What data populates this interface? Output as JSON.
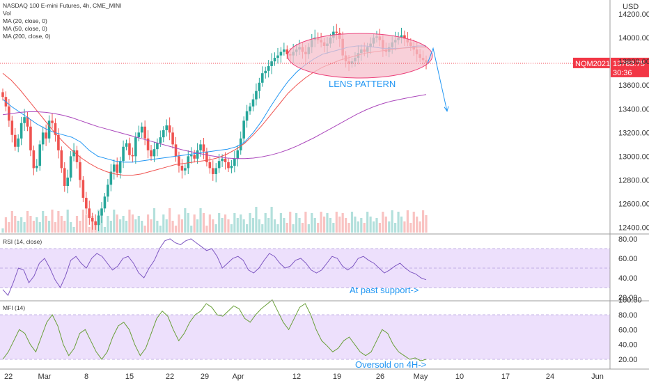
{
  "header": {
    "symbol_line": "NASDAQ 100 E-mini Futures, 4h, CME_MINI",
    "vol_label": "Vol",
    "ma_labels": [
      "MA (20, close, 0)",
      "MA (50, close, 0)",
      "MA (200, close, 0)"
    ]
  },
  "price_axis": {
    "currency": "USD",
    "ticks": [
      12400,
      12600,
      12800,
      13000,
      13200,
      13400,
      13600,
      13800,
      14000,
      14200
    ],
    "tick_labels": [
      "12400.00",
      "12600.00",
      "12800.00",
      "13000.00",
      "13200.00",
      "13400.00",
      "13600.00",
      "13800.00",
      "14000.00",
      "14200.00"
    ],
    "current_symbol": "NQM2021",
    "current_price": "13783.75",
    "countdown": "30:36",
    "badge_color": "#f23645"
  },
  "rsi": {
    "label": "RSI (14, close)",
    "tick_labels": [
      "20.00",
      "40.00",
      "60.00",
      "80.00"
    ],
    "band": [
      30,
      70
    ]
  },
  "mfi": {
    "label": "MFI (14)",
    "tick_labels": [
      "20.00",
      "40.00",
      "60.00",
      "80.00",
      "100.00"
    ],
    "band": [
      20,
      80
    ]
  },
  "time_axis": {
    "labels": [
      "22",
      "Mar",
      "8",
      "15",
      "22",
      "29",
      "Apr",
      "12",
      "19",
      "26",
      "May",
      "10",
      "17",
      "24",
      "Jun"
    ]
  },
  "annotations": {
    "lens": "LENS PATTERN",
    "rsi_note": "At past support->",
    "mfi_note": "Oversold on 4H->"
  },
  "colors": {
    "up": "#26a69a",
    "down": "#ef5350",
    "ma20": "#2196f3",
    "ma50": "#ef5350",
    "ma200": "#ab47bc",
    "rsi_line": "#7e57c2",
    "mfi_line": "#689f38",
    "band_fill": "#ede0fc",
    "annotation": "#2196f3",
    "ellipse_fill": "#f6c0cc",
    "ellipse_stroke": "#ec407a"
  },
  "chart_data": {
    "type": "candlestick",
    "title": "NASDAQ 100 E-mini Futures, 4h, CME_MINI",
    "ylabel": "USD",
    "ylim": [
      12300,
      14300
    ],
    "x_labels": [
      "22",
      "Mar",
      "8",
      "15",
      "22",
      "29",
      "Apr",
      "12",
      "19",
      "26",
      "May",
      "10",
      "17",
      "24",
      "Jun"
    ],
    "close_series": [
      13500,
      13420,
      13300,
      13180,
      13080,
      13150,
      13280,
      13330,
      13250,
      13050,
      12900,
      12920,
      13100,
      13200,
      13150,
      13300,
      13280,
      13180,
      13050,
      12900,
      12750,
      12820,
      13000,
      13050,
      12950,
      12800,
      12650,
      12560,
      12480,
      12450,
      12420,
      12500,
      12560,
      12660,
      12760,
      12870,
      12930,
      12860,
      12960,
      13080,
      13110,
      13010,
      13000,
      13160,
      13200,
      13250,
      13150,
      13050,
      13000,
      13060,
      13110,
      13160,
      13220,
      13260,
      13200,
      13100,
      13000,
      12920,
      12880,
      12900,
      13000,
      13010,
      12980,
      13050,
      13100,
      13040,
      12950,
      12900,
      12850,
      12900,
      12960,
      12980,
      12950,
      12900,
      12920,
      12980,
      13050,
      13150,
      13300,
      13380,
      13420,
      13480,
      13550,
      13620,
      13700,
      13720,
      13760,
      13800,
      13830,
      13850,
      13880,
      13900,
      13860,
      13850,
      13880,
      13900,
      13920,
      13880,
      13860,
      13920,
      13980,
      14000,
      13980,
      13960,
      13930,
      13950,
      14000,
      14050,
      14040,
      13990,
      13850,
      13800,
      13780,
      13800,
      13830,
      13870,
      13900,
      13880,
      13920,
      13950,
      14000,
      14010,
      13980,
      13900,
      13880,
      13920,
      13960,
      13980,
      14000,
      14020,
      13990,
      13960,
      13930,
      13900,
      13860,
      13830,
      13810,
      13790
    ],
    "series": [
      {
        "name": "MA (20, close, 0)",
        "values": [
          13480,
          13420,
          13370,
          13320,
          13270,
          13230,
          13200,
          13180,
          13160,
          13120,
          13050,
          13000,
          12980,
          12960,
          12950,
          12950,
          12960,
          12970,
          12980,
          12990,
          13000,
          13010,
          13020,
          13030,
          13040,
          13050,
          13060,
          13080,
          13120,
          13200,
          13300,
          13420,
          13530,
          13630,
          13710,
          13770,
          13820,
          13860,
          13880,
          13900,
          13920,
          13930,
          13930,
          13920,
          13910,
          13910,
          13910,
          13920,
          13930,
          13930
        ]
      },
      {
        "name": "MA (50, close, 0)",
        "values": [
          13700,
          13640,
          13560,
          13470,
          13380,
          13290,
          13200,
          13120,
          13050,
          12990,
          12940,
          12900,
          12870,
          12850,
          12840,
          12840,
          12850,
          12870,
          12890,
          12910,
          12930,
          12940,
          12950,
          12960,
          12970,
          12990,
          13020,
          13060,
          13110,
          13180,
          13260,
          13350,
          13440,
          13530,
          13600,
          13660,
          13710,
          13750,
          13780,
          13810,
          13830,
          13850,
          13870,
          13880,
          13890,
          13900,
          13910,
          13915,
          13920,
          13920
        ]
      },
      {
        "name": "MA (200, close, 0)",
        "values": [
          13350,
          13360,
          13370,
          13375,
          13375,
          13370,
          13360,
          13345,
          13325,
          13300,
          13275,
          13250,
          13230,
          13210,
          13190,
          13170,
          13150,
          13130,
          13110,
          13090,
          13070,
          13050,
          13035,
          13020,
          13005,
          12995,
          12985,
          12980,
          12980,
          12985,
          12995,
          13010,
          13030,
          13055,
          13085,
          13120,
          13155,
          13195,
          13235,
          13275,
          13315,
          13355,
          13390,
          13420,
          13445,
          13465,
          13480,
          13495,
          13508,
          13520
        ]
      },
      {
        "name": "RSI (14, close)",
        "values": [
          28,
          22,
          35,
          50,
          48,
          35,
          42,
          55,
          60,
          50,
          38,
          30,
          42,
          58,
          62,
          55,
          50,
          60,
          65,
          62,
          55,
          48,
          52,
          60,
          62,
          55,
          45,
          40,
          50,
          58,
          70,
          78,
          80,
          76,
          74,
          78,
          80,
          76,
          72,
          68,
          70,
          62,
          50,
          55,
          60,
          62,
          58,
          48,
          45,
          50,
          58,
          65,
          62,
          55,
          50,
          52,
          58,
          60,
          55,
          48,
          45,
          48,
          55,
          62,
          60,
          52,
          48,
          52,
          60,
          62,
          58,
          55,
          50,
          45,
          48,
          52,
          55,
          50,
          46,
          44,
          40,
          38
        ]
      },
      {
        "name": "MFI (14)",
        "values": [
          20,
          30,
          45,
          60,
          55,
          40,
          30,
          50,
          70,
          80,
          65,
          40,
          25,
          35,
          55,
          60,
          45,
          30,
          20,
          30,
          50,
          65,
          70,
          60,
          40,
          25,
          35,
          55,
          75,
          85,
          78,
          60,
          45,
          55,
          70,
          80,
          85,
          95,
          90,
          80,
          78,
          85,
          92,
          88,
          75,
          70,
          80,
          88,
          94,
          100,
          85,
          70,
          60,
          75,
          90,
          95,
          80,
          60,
          45,
          38,
          30,
          35,
          45,
          50,
          40,
          30,
          25,
          30,
          45,
          60,
          55,
          40,
          30,
          25,
          20,
          22,
          18,
          20
        ]
      }
    ],
    "volume_relative": "unlabeled",
    "current_price": 13783.75,
    "projection": {
      "from": 13783.75,
      "peak": 13910,
      "to": 13380
    }
  }
}
